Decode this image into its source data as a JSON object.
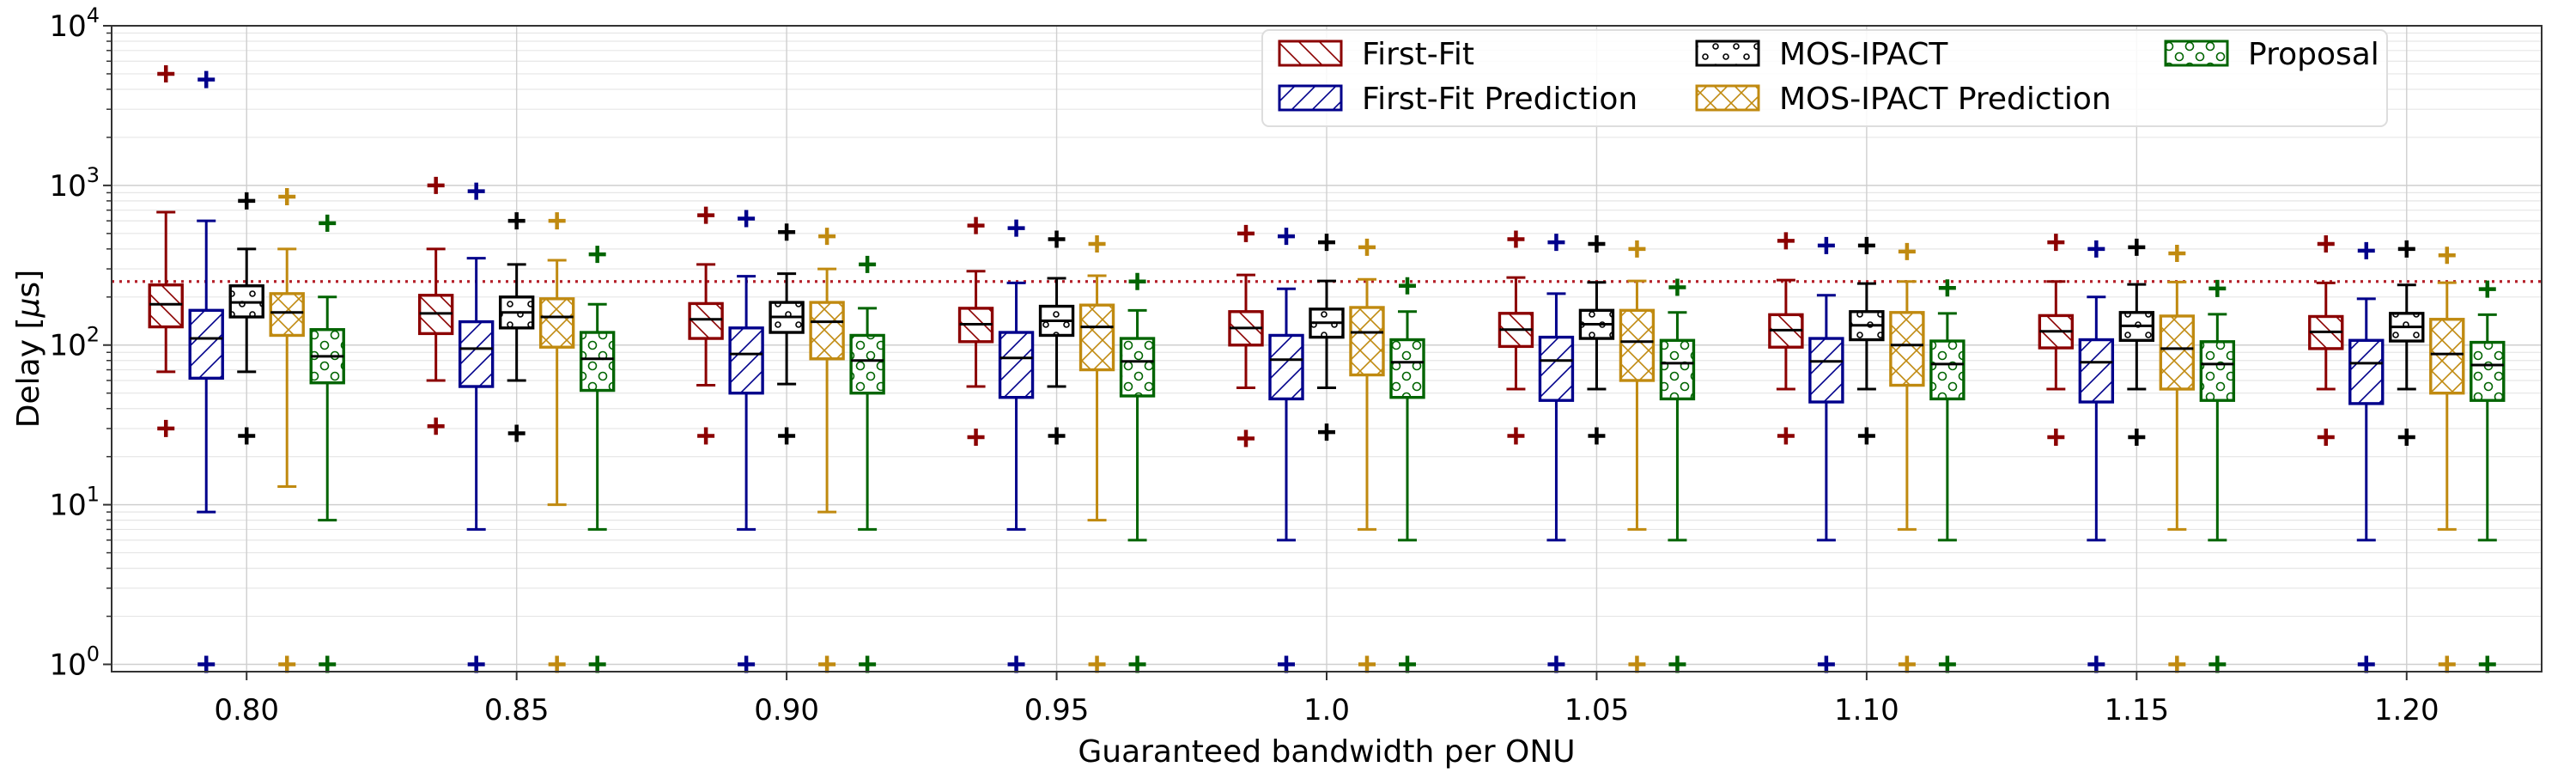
{
  "chart_data": {
    "type": "box",
    "xlabel": "Guaranteed bandwidth per ONU",
    "ylabel": "Delay [",
    "ylabel_symbol": "μ",
    "ylabel_unit": "s]",
    "yscale": "log",
    "ylim": [
      0.9,
      10000
    ],
    "y_ticks": [
      {
        "base": "10",
        "exp": "0",
        "value": 1
      },
      {
        "base": "10",
        "exp": "1",
        "value": 10
      },
      {
        "base": "10",
        "exp": "2",
        "value": 100
      },
      {
        "base": "10",
        "exp": "3",
        "value": 1000
      },
      {
        "base": "10",
        "exp": "4",
        "value": 10000
      }
    ],
    "categories": [
      "0.80",
      "0.85",
      "0.90",
      "0.95",
      "1.0",
      "1.05",
      "1.10",
      "1.15",
      "1.20"
    ],
    "reference_line": {
      "value": 250,
      "color": "#b5202a"
    },
    "legend_position": "top-right",
    "series": [
      {
        "name": "First-Fit",
        "color": "#8b0000",
        "hatch": "backslash",
        "boxes": [
          {
            "whislo": 68,
            "q1": 130,
            "med": 180,
            "q3": 238,
            "whishi": 680,
            "fliers": [
              30,
              5000
            ]
          },
          {
            "whislo": 60,
            "q1": 118,
            "med": 158,
            "q3": 205,
            "whishi": 400,
            "fliers": [
              31,
              1000
            ]
          },
          {
            "whislo": 56,
            "q1": 110,
            "med": 145,
            "q3": 182,
            "whishi": 320,
            "fliers": [
              27,
              650
            ]
          },
          {
            "whislo": 55,
            "q1": 105,
            "med": 135,
            "q3": 170,
            "whishi": 290,
            "fliers": [
              26.5,
              560
            ]
          },
          {
            "whislo": 54,
            "q1": 100,
            "med": 128,
            "q3": 162,
            "whishi": 275,
            "fliers": [
              26,
              500
            ]
          },
          {
            "whislo": 53,
            "q1": 98,
            "med": 125,
            "q3": 158,
            "whishi": 265,
            "fliers": [
              27,
              460
            ]
          },
          {
            "whislo": 53,
            "q1": 97,
            "med": 124,
            "q3": 155,
            "whishi": 255,
            "fliers": [
              27,
              450
            ]
          },
          {
            "whislo": 53,
            "q1": 96,
            "med": 122,
            "q3": 153,
            "whishi": 250,
            "fliers": [
              26.5,
              440
            ]
          },
          {
            "whislo": 53,
            "q1": 95,
            "med": 121,
            "q3": 151,
            "whishi": 245,
            "fliers": [
              26.5,
              430
            ]
          }
        ]
      },
      {
        "name": "First-Fit Prediction",
        "color": "#00008b",
        "hatch": "slash",
        "boxes": [
          {
            "whislo": 9,
            "q1": 62,
            "med": 110,
            "q3": 165,
            "whishi": 600,
            "fliers": [
              1,
              4600
            ]
          },
          {
            "whislo": 7,
            "q1": 55,
            "med": 95,
            "q3": 140,
            "whishi": 350,
            "fliers": [
              1,
              920
            ]
          },
          {
            "whislo": 7,
            "q1": 50,
            "med": 88,
            "q3": 128,
            "whishi": 270,
            "fliers": [
              1,
              620
            ]
          },
          {
            "whislo": 7,
            "q1": 47,
            "med": 83,
            "q3": 120,
            "whishi": 245,
            "fliers": [
              1,
              540
            ]
          },
          {
            "whislo": 6,
            "q1": 46,
            "med": 81,
            "q3": 115,
            "whishi": 225,
            "fliers": [
              1,
              480
            ]
          },
          {
            "whislo": 6,
            "q1": 45,
            "med": 80,
            "q3": 112,
            "whishi": 210,
            "fliers": [
              1,
              440
            ]
          },
          {
            "whislo": 6,
            "q1": 44,
            "med": 79,
            "q3": 110,
            "whishi": 205,
            "fliers": [
              1,
              420
            ]
          },
          {
            "whislo": 6,
            "q1": 44,
            "med": 78,
            "q3": 108,
            "whishi": 200,
            "fliers": [
              1,
              400
            ]
          },
          {
            "whislo": 6,
            "q1": 43,
            "med": 77,
            "q3": 107,
            "whishi": 195,
            "fliers": [
              1,
              390
            ]
          }
        ]
      },
      {
        "name": "MOS-IPACT",
        "color": "#000000",
        "hatch": "circles",
        "boxes": [
          {
            "whislo": 68,
            "q1": 150,
            "med": 185,
            "q3": 235,
            "whishi": 400,
            "fliers": [
              27,
              800
            ]
          },
          {
            "whislo": 60,
            "q1": 128,
            "med": 160,
            "q3": 200,
            "whishi": 320,
            "fliers": [
              28,
              600
            ]
          },
          {
            "whislo": 57,
            "q1": 120,
            "med": 150,
            "q3": 185,
            "whishi": 280,
            "fliers": [
              27,
              510
            ]
          },
          {
            "whislo": 55,
            "q1": 115,
            "med": 142,
            "q3": 175,
            "whishi": 262,
            "fliers": [
              27,
              460
            ]
          },
          {
            "whislo": 54,
            "q1": 112,
            "med": 138,
            "q3": 168,
            "whishi": 252,
            "fliers": [
              28.5,
              440
            ]
          },
          {
            "whislo": 53,
            "q1": 110,
            "med": 135,
            "q3": 165,
            "whishi": 247,
            "fliers": [
              27,
              430
            ]
          },
          {
            "whislo": 53,
            "q1": 108,
            "med": 133,
            "q3": 162,
            "whishi": 243,
            "fliers": [
              27,
              420
            ]
          },
          {
            "whislo": 53,
            "q1": 107,
            "med": 132,
            "q3": 160,
            "whishi": 240,
            "fliers": [
              26.5,
              410
            ]
          },
          {
            "whislo": 53,
            "q1": 106,
            "med": 130,
            "q3": 158,
            "whishi": 238,
            "fliers": [
              26.5,
              400
            ]
          }
        ]
      },
      {
        "name": "MOS-IPACT Prediction",
        "color": "#c08a10",
        "hatch": "cross",
        "boxes": [
          {
            "whislo": 13,
            "q1": 115,
            "med": 160,
            "q3": 210,
            "whishi": 400,
            "fliers": [
              1,
              850
            ]
          },
          {
            "whislo": 10,
            "q1": 97,
            "med": 150,
            "q3": 195,
            "whishi": 340,
            "fliers": [
              1,
              600
            ]
          },
          {
            "whislo": 9,
            "q1": 82,
            "med": 140,
            "q3": 185,
            "whishi": 300,
            "fliers": [
              1,
              480
            ]
          },
          {
            "whislo": 8,
            "q1": 70,
            "med": 130,
            "q3": 178,
            "whishi": 272,
            "fliers": [
              1,
              430
            ]
          },
          {
            "whislo": 7,
            "q1": 65,
            "med": 120,
            "q3": 172,
            "whishi": 258,
            "fliers": [
              1,
              410
            ]
          },
          {
            "whislo": 7,
            "q1": 60,
            "med": 105,
            "q3": 165,
            "whishi": 252,
            "fliers": [
              1,
              400
            ]
          },
          {
            "whislo": 7,
            "q1": 56,
            "med": 100,
            "q3": 160,
            "whishi": 250,
            "fliers": [
              1,
              385
            ]
          },
          {
            "whislo": 7,
            "q1": 53,
            "med": 95,
            "q3": 152,
            "whishi": 248,
            "fliers": [
              1,
              375
            ]
          },
          {
            "whislo": 7,
            "q1": 50,
            "med": 88,
            "q3": 145,
            "whishi": 246,
            "fliers": [
              1,
              365
            ]
          }
        ]
      },
      {
        "name": "Proposal",
        "color": "#006400",
        "hatch": "rings",
        "boxes": [
          {
            "whislo": 8,
            "q1": 58,
            "med": 85,
            "q3": 125,
            "whishi": 200,
            "fliers": [
              1,
              580
            ]
          },
          {
            "whislo": 7,
            "q1": 52,
            "med": 82,
            "q3": 120,
            "whishi": 180,
            "fliers": [
              1,
              370
            ]
          },
          {
            "whislo": 7,
            "q1": 50,
            "med": 80,
            "q3": 115,
            "whishi": 170,
            "fliers": [
              1,
              320
            ]
          },
          {
            "whislo": 6,
            "q1": 48,
            "med": 79,
            "q3": 110,
            "whishi": 165,
            "fliers": [
              1,
              250
            ]
          },
          {
            "whislo": 6,
            "q1": 47,
            "med": 78,
            "q3": 108,
            "whishi": 162,
            "fliers": [
              1,
              235
            ]
          },
          {
            "whislo": 6,
            "q1": 46,
            "med": 77,
            "q3": 107,
            "whishi": 160,
            "fliers": [
              1,
              230
            ]
          },
          {
            "whislo": 6,
            "q1": 46,
            "med": 76,
            "q3": 106,
            "whishi": 158,
            "fliers": [
              1,
              228
            ]
          },
          {
            "whislo": 6,
            "q1": 45,
            "med": 76,
            "q3": 105,
            "whishi": 156,
            "fliers": [
              1,
              226
            ]
          },
          {
            "whislo": 6,
            "q1": 45,
            "med": 75,
            "q3": 104,
            "whishi": 155,
            "fliers": [
              1,
              224
            ]
          }
        ]
      }
    ]
  }
}
